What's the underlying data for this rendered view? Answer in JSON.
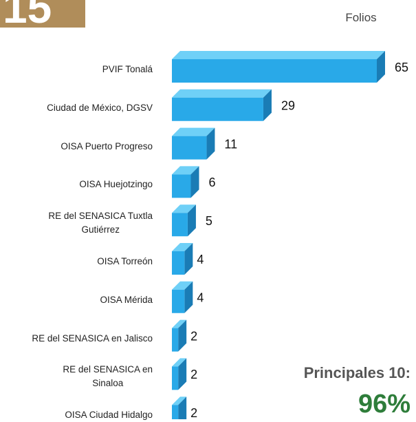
{
  "page_number": "15",
  "chart_data": {
    "type": "bar",
    "orientation": "horizontal",
    "unit_label": "Folios",
    "categories": [
      "PVIF Tonalá",
      "Ciudad de México, DGSV",
      "OISA Puerto Progreso",
      "OISA Huejotzingo",
      "RE del SENASICA Tuxtla\nGutiérrez",
      "OISA Torreón",
      "OISA Mérida",
      "RE del SENASICA en Jalisco",
      "RE del SENASICA en\nSinaloa",
      "OISA Ciudad Hidalgo"
    ],
    "values": [
      65,
      29,
      11,
      6,
      5,
      4,
      4,
      2,
      2,
      2
    ],
    "colors": {
      "front": "#29a9e8",
      "top": "#6fd0f7",
      "side": "#1a7cb5"
    }
  },
  "summary": {
    "label": "Principales 10:",
    "value": "96%"
  }
}
